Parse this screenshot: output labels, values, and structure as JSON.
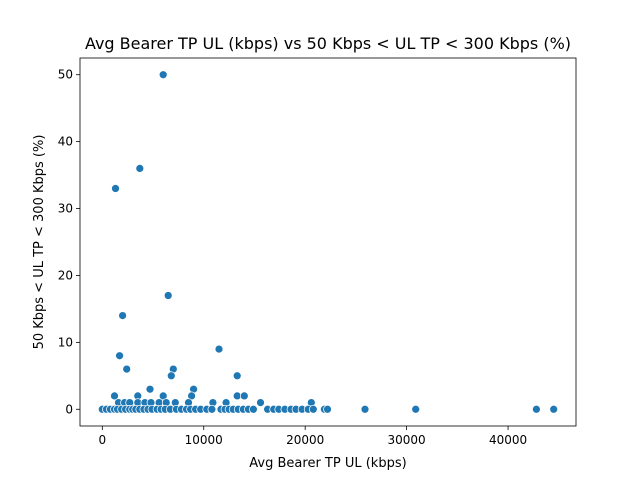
{
  "chart_data": {
    "type": "scatter",
    "title": "Avg Bearer TP UL (kbps) vs 50 Kbps < UL TP < 300 Kbps (%)",
    "xlabel": "Avg Bearer TP UL (kbps)",
    "ylabel": "50 Kbps < UL TP < 300 Kbps (%)",
    "xlim": [
      -2200,
      46700
    ],
    "ylim": [
      -2.5,
      52.5
    ],
    "xticks": [
      0,
      10000,
      20000,
      30000,
      40000
    ],
    "yticks": [
      0,
      10,
      20,
      30,
      40,
      50
    ],
    "grid": false,
    "color": "#1f77b4",
    "points": [
      [
        6000,
        50
      ],
      [
        3700,
        36
      ],
      [
        1300,
        33
      ],
      [
        6500,
        17
      ],
      [
        2000,
        14
      ],
      [
        11500,
        9
      ],
      [
        1700,
        8
      ],
      [
        7000,
        6
      ],
      [
        2400,
        6
      ],
      [
        6800,
        5
      ],
      [
        13300,
        5
      ],
      [
        4700,
        3
      ],
      [
        9000,
        3
      ],
      [
        1200,
        2
      ],
      [
        3500,
        2
      ],
      [
        6000,
        2
      ],
      [
        8800,
        2
      ],
      [
        13300,
        2
      ],
      [
        14000,
        2
      ],
      [
        1600,
        1
      ],
      [
        2200,
        1
      ],
      [
        2700,
        1
      ],
      [
        3500,
        1
      ],
      [
        4200,
        1
      ],
      [
        4800,
        1
      ],
      [
        5600,
        1
      ],
      [
        6300,
        1
      ],
      [
        7200,
        1
      ],
      [
        8500,
        1
      ],
      [
        10900,
        1
      ],
      [
        12200,
        1
      ],
      [
        15600,
        1
      ],
      [
        20600,
        1
      ],
      [
        0,
        0
      ],
      [
        400,
        0
      ],
      [
        800,
        0
      ],
      [
        1200,
        0
      ],
      [
        1500,
        0
      ],
      [
        1900,
        0
      ],
      [
        2300,
        0
      ],
      [
        2700,
        0
      ],
      [
        3000,
        0
      ],
      [
        3300,
        0
      ],
      [
        3700,
        0
      ],
      [
        4100,
        0
      ],
      [
        4500,
        0
      ],
      [
        4900,
        0
      ],
      [
        5400,
        0
      ],
      [
        5800,
        0
      ],
      [
        6200,
        0
      ],
      [
        6700,
        0
      ],
      [
        7300,
        0
      ],
      [
        7800,
        0
      ],
      [
        8300,
        0
      ],
      [
        8700,
        0
      ],
      [
        9200,
        0
      ],
      [
        9700,
        0
      ],
      [
        10300,
        0
      ],
      [
        10800,
        0
      ],
      [
        11700,
        0
      ],
      [
        12100,
        0
      ],
      [
        12500,
        0
      ],
      [
        12900,
        0
      ],
      [
        13400,
        0
      ],
      [
        13900,
        0
      ],
      [
        14400,
        0
      ],
      [
        14900,
        0
      ],
      [
        16300,
        0
      ],
      [
        16900,
        0
      ],
      [
        17400,
        0
      ],
      [
        18000,
        0
      ],
      [
        18600,
        0
      ],
      [
        19100,
        0
      ],
      [
        19700,
        0
      ],
      [
        20300,
        0
      ],
      [
        20800,
        0
      ],
      [
        21900,
        0
      ],
      [
        22200,
        0
      ],
      [
        25900,
        0
      ],
      [
        30900,
        0
      ],
      [
        42800,
        0
      ],
      [
        44500,
        0
      ]
    ]
  }
}
